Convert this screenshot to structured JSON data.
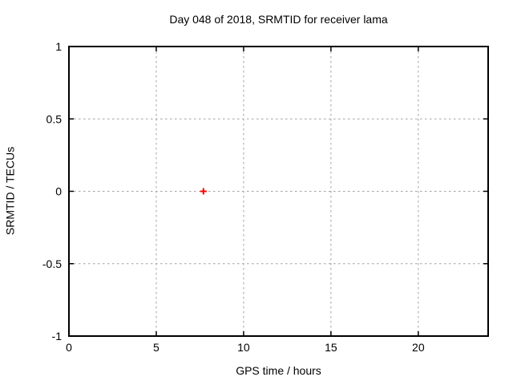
{
  "style": {
    "background": "#ffffff",
    "border_color": "#000000",
    "grid_color": "#a0a0a0",
    "text_color": "#000000",
    "marker_color": "#ff0000"
  },
  "chart_data": {
    "type": "scatter",
    "title": "Day 048 of 2018, SRMTID for receiver lama",
    "xlabel": "GPS time / hours",
    "ylabel": "SRMTID / TECUs",
    "xlim": [
      0,
      24
    ],
    "ylim": [
      -1,
      1
    ],
    "xtick_values": [
      0,
      5,
      10,
      15,
      20
    ],
    "xtick_labels": [
      "0",
      "5",
      "10",
      "15",
      "20"
    ],
    "ytick_values": [
      -1,
      -0.5,
      0,
      0.5,
      1
    ],
    "ytick_labels": [
      "-1",
      "-0.5",
      "0",
      "0.5",
      "1"
    ],
    "grid": true,
    "legend": "none",
    "series": [
      {
        "name": "SRMTID",
        "marker": "plus",
        "color": "#ff0000",
        "points": [
          {
            "x": 7.7,
            "y": 0.0
          }
        ]
      }
    ]
  }
}
